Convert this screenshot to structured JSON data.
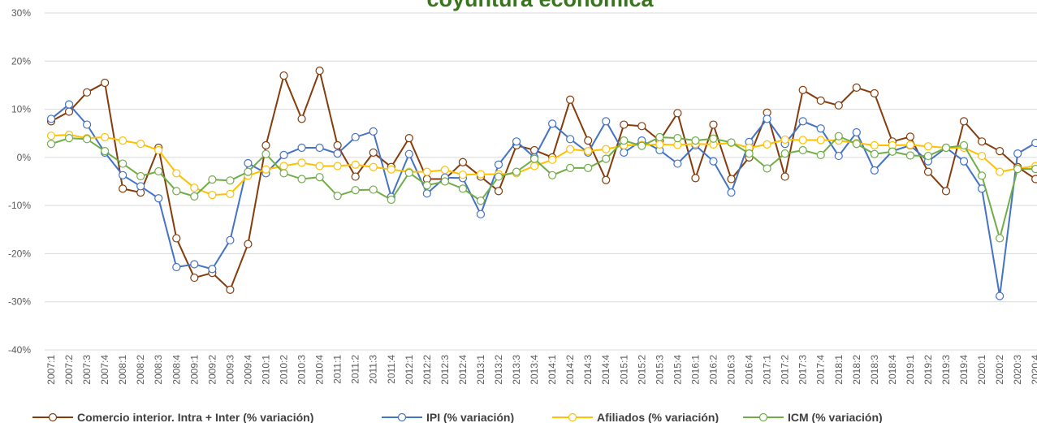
{
  "chart_data": {
    "type": "line",
    "title": "coyuntura económica",
    "categories": [
      "2007:1",
      "2007:2",
      "2007:3",
      "2007:4",
      "2008:1",
      "2008:2",
      "2008:3",
      "2008:4",
      "2009:1",
      "2009:2",
      "2009:3",
      "2009:4",
      "2010:1",
      "2010:2",
      "2010:3",
      "2010:4",
      "2011:1",
      "2011:2",
      "2011:3",
      "2011:4",
      "2012:1",
      "2012:2",
      "2012:3",
      "2012:4",
      "2013:1",
      "2013:2",
      "2013:3",
      "2013:4",
      "2014:1",
      "2014:2",
      "2014:3",
      "2014:4",
      "2015:1",
      "2015:2",
      "2015:3",
      "2015:4",
      "2016:1",
      "2016:2",
      "2016:3",
      "2016:4",
      "2017:1",
      "2017:2",
      "2017:3",
      "2017:4",
      "2018:1",
      "2018:2",
      "2018:3",
      "2018:4",
      "2019:1",
      "2019:2",
      "2019:3",
      "2019:4",
      "2020:1",
      "2020:2",
      "2020:3",
      "2020:4"
    ],
    "series": [
      {
        "name": "Comercio interior. Intra + Inter (% variación)",
        "color": "#843c0c",
        "values": [
          7.5,
          9.5,
          13.5,
          15.5,
          -6.5,
          -7.3,
          2,
          -16.8,
          -25,
          -24,
          -27.5,
          -18,
          2.5,
          17,
          8,
          18,
          2.5,
          -4,
          1,
          -2,
          4,
          -4.5,
          -4.5,
          -1,
          -4,
          -7,
          2.5,
          1.5,
          0,
          12,
          3.5,
          -4.7,
          6.8,
          6.5,
          3.5,
          9.2,
          -4.3,
          6.8,
          -4.5,
          0,
          9.3,
          -4,
          14,
          11.8,
          10.8,
          14.5,
          13.3,
          3.3,
          4.3,
          -3,
          -7,
          7.5,
          3.3,
          1.3,
          -2,
          -4.5
        ]
      },
      {
        "name": "IPI (% variación)",
        "color": "#4472c4",
        "values": [
          8,
          11,
          6.8,
          1,
          -3.7,
          -6,
          -8.5,
          -22.8,
          -22.2,
          -23.2,
          -17.2,
          -1.2,
          -3.3,
          0.5,
          2,
          2,
          0.8,
          4.2,
          5.4,
          -8.2,
          0.7,
          -7.5,
          -4.2,
          -4.3,
          -11.8,
          -1.5,
          3.3,
          0,
          7,
          3.8,
          1,
          7.5,
          1,
          3.5,
          1.5,
          -1.3,
          2.5,
          -0.8,
          -7.3,
          3.2,
          8,
          2.8,
          7.5,
          6,
          0.3,
          5.2,
          -2.7,
          1.3,
          2.5,
          -0.8,
          2,
          -0.8,
          -6.5,
          -28.8,
          0.8,
          3
        ]
      },
      {
        "name": "Afiliados (% variación)",
        "color": "#ffc000",
        "values": [
          4.5,
          4.7,
          4,
          4.2,
          3.5,
          2.8,
          1.5,
          -3.3,
          -6.3,
          -7.8,
          -7.6,
          -3.8,
          -2.5,
          -1.8,
          -1.1,
          -1.8,
          -1.8,
          -1.5,
          -2,
          -2.5,
          -3,
          -3,
          -2.6,
          -3.6,
          -3.5,
          -3.5,
          -3.3,
          -1.8,
          -0.5,
          1.7,
          1.3,
          1.7,
          2.5,
          2.6,
          2.7,
          2.6,
          2.8,
          2.7,
          3,
          2,
          2.7,
          3.7,
          3.6,
          3.6,
          3.5,
          3,
          2.5,
          2.5,
          2.6,
          2.3,
          2,
          2,
          0.3,
          -3,
          -2.3,
          -1.8
        ]
      },
      {
        "name": "ICM (% variación)",
        "color": "#70ad47",
        "values": [
          2.8,
          4,
          3.8,
          1.3,
          -1.3,
          -3.9,
          -2.9,
          -7,
          -8.1,
          -4.6,
          -4.8,
          -3,
          0.7,
          -3.3,
          -4.5,
          -4.1,
          -8,
          -6.8,
          -6.7,
          -8.8,
          -3.2,
          -5.8,
          -5,
          -6.5,
          -9,
          -4,
          -3,
          -0.3,
          -3.7,
          -2.2,
          -2.2,
          -0.3,
          3.5,
          2.4,
          4.2,
          4,
          3.5,
          3.9,
          3.1,
          0.8,
          -2.3,
          0.8,
          1.5,
          0.5,
          4.4,
          2.8,
          0.7,
          1.2,
          0.4,
          0.3,
          2,
          2.5,
          -3.8,
          -16.8,
          -2.4,
          -2.4
        ]
      }
    ],
    "ylim": [
      -40,
      30
    ],
    "yticks": [
      {
        "value": -40,
        "label": "-40%"
      },
      {
        "value": -30,
        "label": "-30%"
      },
      {
        "value": -20,
        "label": "-20%"
      },
      {
        "value": -10,
        "label": "-10%"
      },
      {
        "value": 0,
        "label": "0%"
      },
      {
        "value": 10,
        "label": "10%"
      },
      {
        "value": 20,
        "label": "20%"
      },
      {
        "value": 30,
        "label": "30%"
      }
    ],
    "grid": true,
    "legend": "bottom"
  }
}
